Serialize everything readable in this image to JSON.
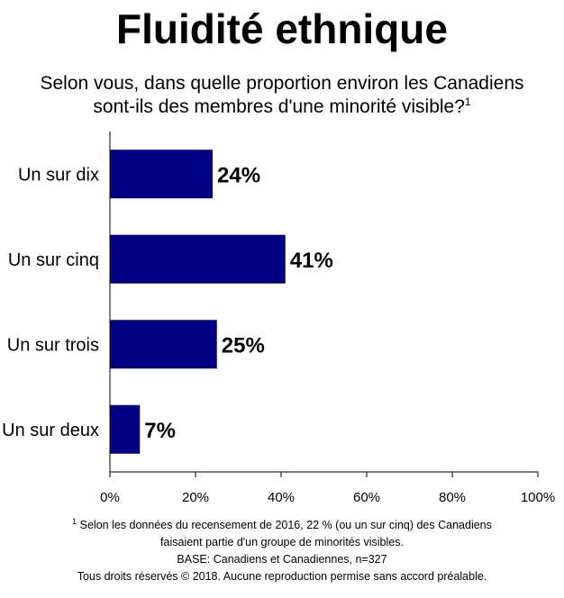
{
  "title": "Fluidité ethnique",
  "question": {
    "line1": "Selon vous, dans quelle proportion environ les Canadiens",
    "line2": "sont-ils des membres d'une minorité visible?",
    "footnote_ref": "1"
  },
  "chart_data": {
    "type": "bar",
    "orientation": "horizontal",
    "categories": [
      "Un sur dix",
      "Un sur cinq",
      "Un sur trois",
      "Un sur deux"
    ],
    "values": [
      24,
      41,
      25,
      7
    ],
    "data_labels": [
      "24%",
      "41%",
      "25%",
      "7%"
    ],
    "xlim": [
      0,
      100
    ],
    "x_ticks": [
      0,
      20,
      40,
      60,
      80,
      100
    ],
    "x_tick_labels": [
      "0%",
      "20%",
      "40%",
      "60%",
      "80%",
      "100%"
    ],
    "bar_color": "#000080",
    "grid": false,
    "legend": "none"
  },
  "footer": {
    "footnote_mark": "1",
    "footnote_line1": "Selon les données du recensement de 2016, 22 % (ou un sur cinq) des Canadiens",
    "footnote_line2": "faisaient partie d'un groupe de minorités visibles.",
    "base": "BASE: Canadiens et Canadiennes, n=327",
    "copyright": "Tous droits réservés © 2018. Aucune reproduction permise sans accord préalable."
  }
}
